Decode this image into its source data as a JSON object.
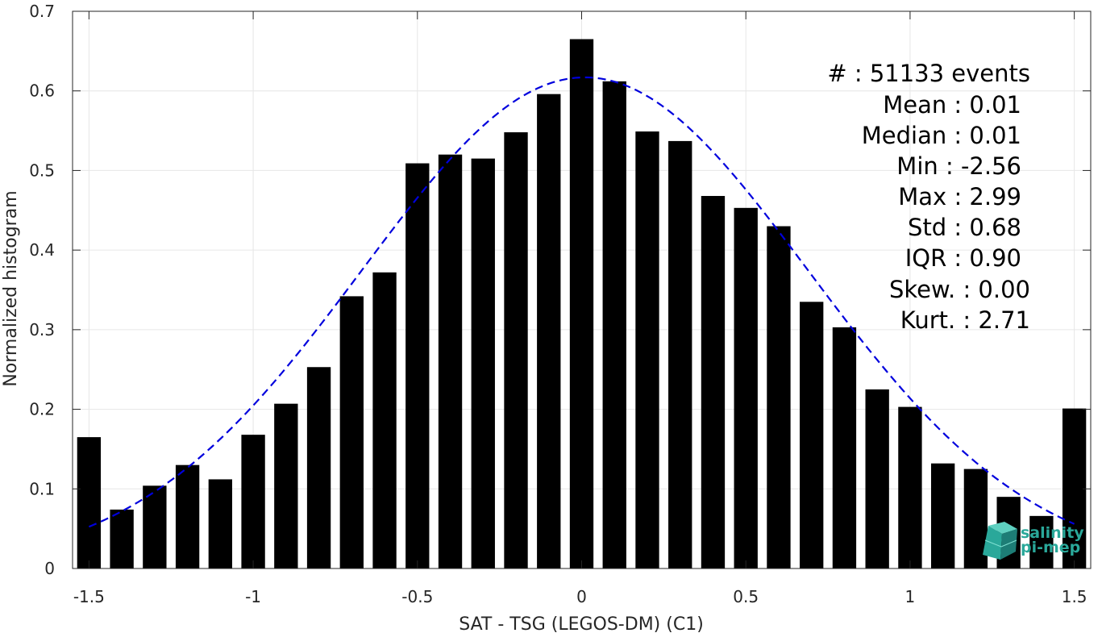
{
  "chart_data": {
    "type": "bar",
    "xlabel": "SAT - TSG (LEGOS-DM) (C1)",
    "ylabel": "Normalized histogram",
    "xlim": [
      -1.55,
      1.55
    ],
    "ylim": [
      0,
      0.7
    ],
    "xticks": [
      -1.5,
      -1,
      -0.5,
      0,
      0.5,
      1,
      1.5
    ],
    "xtick_labels": [
      "-1.5",
      "-1",
      "-0.5",
      "0",
      "0.5",
      "1",
      "1.5"
    ],
    "yticks": [
      0,
      0.1,
      0.2,
      0.3,
      0.4,
      0.5,
      0.6,
      0.7
    ],
    "ytick_labels": [
      "0",
      "0.1",
      "0.2",
      "0.3",
      "0.4",
      "0.5",
      "0.6",
      "0.7"
    ],
    "grid": true,
    "bar_color": "#000000",
    "bin_width": 0.1,
    "x": [
      -1.5,
      -1.4,
      -1.3,
      -1.2,
      -1.1,
      -1.0,
      -0.9,
      -0.8,
      -0.7,
      -0.6,
      -0.5,
      -0.4,
      -0.3,
      -0.2,
      -0.1,
      0.0,
      0.1,
      0.2,
      0.3,
      0.4,
      0.5,
      0.6,
      0.7,
      0.8,
      0.9,
      1.0,
      1.1,
      1.2,
      1.3,
      1.4,
      1.5
    ],
    "values": [
      0.165,
      0.074,
      0.104,
      0.13,
      0.112,
      0.168,
      0.207,
      0.253,
      0.342,
      0.372,
      0.509,
      0.52,
      0.515,
      0.548,
      0.596,
      0.665,
      0.612,
      0.549,
      0.537,
      0.468,
      0.453,
      0.43,
      0.335,
      0.303,
      0.225,
      0.203,
      0.132,
      0.125,
      0.09,
      0.066,
      0.201
    ],
    "fit": {
      "type": "gaussian",
      "color": "#0000dd",
      "style": "dashed",
      "x_range": [
        -1.5,
        1.5
      ],
      "peak": 0.617,
      "mean": 0.01,
      "std": 0.68
    }
  },
  "stats": {
    "lines": [
      "#  : 51133 events",
      "Mean : 0.01",
      "Median : 0.01",
      "Min : -2.56",
      "Max : 2.99",
      "Std : 0.68",
      "IQR : 0.90",
      "Skew. : 0.00",
      "Kurt. : 2.71"
    ]
  },
  "logo": {
    "line1": "salinity",
    "line2": "pi-mep",
    "color": "#2aa89a"
  }
}
